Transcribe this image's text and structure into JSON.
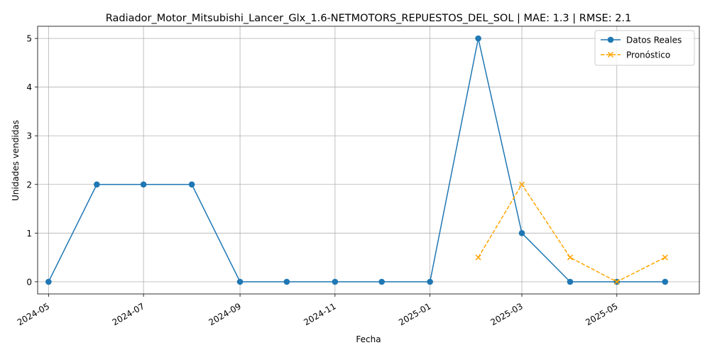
{
  "chart_data": {
    "type": "line",
    "title": "Radiador_Motor_Mitsubishi_Lancer_Glx_1.6-NETMOTORS_REPUESTOS_DEL_SOL | MAE: 1.3 | RMSE: 2.1",
    "xlabel": "Fecha",
    "ylabel": "Unidades vendidas",
    "x_ticks": [
      "2024-05",
      "2024-07",
      "2024-09",
      "2024-11",
      "2025-01",
      "2025-03",
      "2025-05"
    ],
    "y_ticks": [
      "0",
      "1",
      "2",
      "3",
      "4",
      "5"
    ],
    "xlim": [
      "2024-04-24",
      "2025-06-23"
    ],
    "ylim": [
      -0.25,
      5.25
    ],
    "grid": true,
    "legend_position": "top-right",
    "series": [
      {
        "name": "Datos Reales",
        "color": "#1f77b4",
        "marker": "circle",
        "line_style": "solid",
        "x": [
          "2024-05-01",
          "2024-06-01",
          "2024-07-01",
          "2024-08-01",
          "2024-09-01",
          "2024-10-01",
          "2024-11-01",
          "2024-12-01",
          "2025-01-01",
          "2025-02-01",
          "2025-03-01",
          "2025-04-01",
          "2025-05-01",
          "2025-06-01"
        ],
        "values": [
          0,
          2,
          2,
          2,
          0,
          0,
          0,
          0,
          0,
          5,
          1,
          0,
          0,
          0
        ]
      },
      {
        "name": "Pronóstico",
        "color": "#ffa500",
        "marker": "x",
        "line_style": "dashed",
        "x": [
          "2025-02-01",
          "2025-03-01",
          "2025-04-01",
          "2025-05-01",
          "2025-06-01"
        ],
        "values": [
          0.5,
          2,
          0.5,
          0,
          0.5
        ]
      }
    ]
  }
}
